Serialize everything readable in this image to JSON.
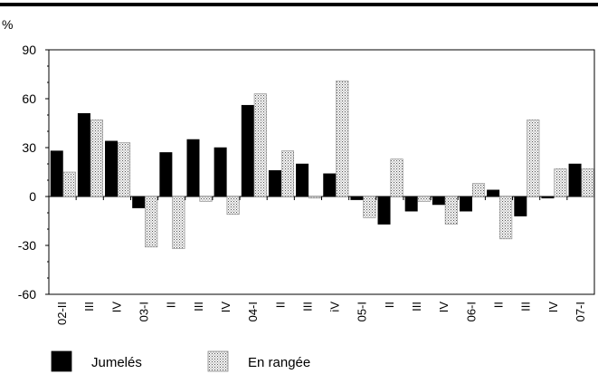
{
  "chart_data": {
    "type": "bar",
    "ylabel": "%",
    "ylim": [
      -60,
      90
    ],
    "yticks": [
      90,
      60,
      30,
      0,
      -30,
      -60
    ],
    "categories": [
      "02-II",
      "III",
      "IV",
      "03-I",
      "II",
      "III",
      "IV",
      "04-I",
      "II",
      "III",
      "iV",
      "05-I",
      "II",
      "III",
      "IV",
      "06-I",
      "II",
      "III",
      "IV",
      "07-I"
    ],
    "series": [
      {
        "name": "Jumelés",
        "color": "#000000",
        "values": [
          28,
          51,
          34,
          -7,
          27,
          35,
          30,
          56,
          16,
          20,
          14,
          -2,
          -17,
          -9,
          -5,
          -9,
          4,
          -12,
          -1,
          20
        ]
      },
      {
        "name": "En rangée",
        "color": "#dcdcdc",
        "values": [
          15,
          47,
          33,
          -31,
          -32,
          -3,
          -11,
          63,
          28,
          -1,
          71,
          -13,
          23,
          -3,
          -17,
          8,
          -26,
          47,
          17,
          17
        ]
      }
    ],
    "legend_position": "bottom-left",
    "grid": false
  }
}
